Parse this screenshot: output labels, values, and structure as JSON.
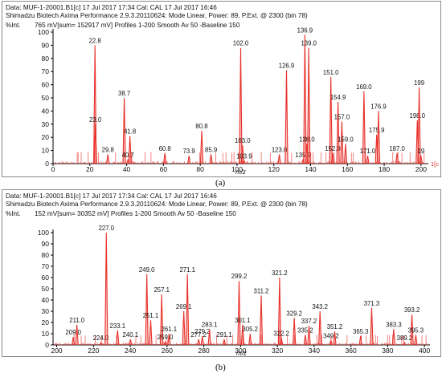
{
  "colors": {
    "trace": "#e8312a",
    "axis": "#000000",
    "label": "#111111",
    "frame": "#8a8a8a"
  },
  "figure": {
    "caption_a": "(a)",
    "caption_b": "(b)"
  },
  "chart_data": [
    {
      "type": "line",
      "panel": "a",
      "header_line1": "Data: MUF-1-20001.B1[c] 17 Jul 2017 17:34 Cal: CAL 17 Jul 2017 16:46",
      "header_line2": "Shimadzu Biotech Axima Performance 2.9.3.20110624: Mode Linear, Power: 89, P.Ext. @ 2300 (bin 78)",
      "header_line3": "765 mV[sum= 152917 mV]  Profiles 1-200 Smooth Av 50 -Baseline 150",
      "ylabel": "%Int.",
      "xlabel": "m/z",
      "end_marker": "1[c",
      "xlim": [
        0,
        204
      ],
      "ylim": [
        0,
        100
      ],
      "xticks": [
        0,
        20,
        40,
        60,
        80,
        100,
        120,
        140,
        160,
        180,
        200
      ],
      "yticks": [
        0,
        10,
        20,
        30,
        40,
        50,
        60,
        70,
        80,
        90,
        100
      ],
      "peaks": [
        {
          "x": 22.8,
          "y": 90,
          "label": "22.8"
        },
        {
          "x": 23.0,
          "y": 30,
          "label": "23.0"
        },
        {
          "x": 29.8,
          "y": 7,
          "label": "29.8"
        },
        {
          "x": 38.7,
          "y": 50,
          "label": "38.7"
        },
        {
          "x": 40.7,
          "y": 3,
          "label": "40.7"
        },
        {
          "x": 41.8,
          "y": 21,
          "label": "41.8"
        },
        {
          "x": 60.8,
          "y": 8,
          "label": "60.8"
        },
        {
          "x": 73.9,
          "y": 6,
          "label": "73.9"
        },
        {
          "x": 80.8,
          "y": 25,
          "label": "80.8"
        },
        {
          "x": 85.9,
          "y": 7,
          "label": "85.9"
        },
        {
          "x": 102.0,
          "y": 88,
          "label": "102.0"
        },
        {
          "x": 103.0,
          "y": 14,
          "label": "103.0"
        },
        {
          "x": 103.9,
          "y": 2,
          "label": "103.9"
        },
        {
          "x": 123.0,
          "y": 7,
          "label": "123.0"
        },
        {
          "x": 126.9,
          "y": 71,
          "label": "126.9"
        },
        {
          "x": 135.9,
          "y": 3,
          "label": "135.9"
        },
        {
          "x": 136.9,
          "y": 98,
          "label": "136.9"
        },
        {
          "x": 138.0,
          "y": 15,
          "label": "138.0"
        },
        {
          "x": 139.0,
          "y": 88,
          "label": "139.0"
        },
        {
          "x": 151.0,
          "y": 66,
          "label": "151.0"
        },
        {
          "x": 152.0,
          "y": 8,
          "label": "152.0"
        },
        {
          "x": 154.9,
          "y": 47,
          "label": "154.9"
        },
        {
          "x": 157.0,
          "y": 32,
          "label": "157.0"
        },
        {
          "x": 159.0,
          "y": 15,
          "label": "159.0"
        },
        {
          "x": 169.0,
          "y": 55,
          "label": "169.0"
        },
        {
          "x": 171.0,
          "y": 6,
          "label": "171.0"
        },
        {
          "x": 175.9,
          "y": 22,
          "label": "175.9"
        },
        {
          "x": 176.9,
          "y": 40,
          "label": "176.9"
        },
        {
          "x": 187.0,
          "y": 8,
          "label": "187.0"
        },
        {
          "x": 198.0,
          "y": 33,
          "label": "198.0"
        },
        {
          "x": 199.0,
          "y": 58,
          "label": "199"
        },
        {
          "x": 200.0,
          "y": 6,
          "label": "19"
        }
      ]
    },
    {
      "type": "line",
      "panel": "b",
      "header_line1": "Data: MUF-1-20001.B1[c] 17 Jul 2017 17:34 Cal: CAL 17 Jul 2017 16:46",
      "header_line2": "Shimadzu Biotech Axima Performance 2.9.3.20110624: Mode Linear, Power: 89, P.Ext. @ 2300 (bin 78)",
      "header_line3": "152 mV[sum= 30352 mV]  Profiles 1-200 Smooth Av 50 -Baseline 150",
      "ylabel": "%Int.",
      "xlabel": "m/z",
      "xlim": [
        198,
        403
      ],
      "ylim": [
        0,
        100
      ],
      "xticks": [
        200,
        220,
        240,
        260,
        280,
        300,
        320,
        340,
        360,
        380,
        400
      ],
      "yticks": [
        0,
        10,
        20,
        30,
        40,
        50,
        60,
        70,
        80,
        90,
        100
      ],
      "peaks": [
        {
          "x": 209.0,
          "y": 7,
          "label": "209.0"
        },
        {
          "x": 211.0,
          "y": 18,
          "label": "211.0"
        },
        {
          "x": 224.0,
          "y": 2,
          "label": "224.0"
        },
        {
          "x": 227.0,
          "y": 100,
          "label": "227.0"
        },
        {
          "x": 233.1,
          "y": 13,
          "label": "233.1"
        },
        {
          "x": 240.1,
          "y": 5,
          "label": "240.1"
        },
        {
          "x": 249.0,
          "y": 63,
          "label": "249.0"
        },
        {
          "x": 251.1,
          "y": 22,
          "label": "251.1"
        },
        {
          "x": 257.1,
          "y": 45,
          "label": "257.1"
        },
        {
          "x": 259.0,
          "y": 3,
          "label": "259.0"
        },
        {
          "x": 261.1,
          "y": 10,
          "label": "261.1"
        },
        {
          "x": 269.1,
          "y": 30,
          "label": "269.1"
        },
        {
          "x": 271.1,
          "y": 63,
          "label": "271.1"
        },
        {
          "x": 277.2,
          "y": 5,
          "label": "277.2"
        },
        {
          "x": 279.2,
          "y": 8,
          "label": "279.2"
        },
        {
          "x": 283.1,
          "y": 14,
          "label": "283.1"
        },
        {
          "x": 291.1,
          "y": 5,
          "label": "291.1"
        },
        {
          "x": 299.2,
          "y": 57,
          "label": "299.2"
        },
        {
          "x": 301.1,
          "y": 18,
          "label": "301.1"
        },
        {
          "x": 305.2,
          "y": 10,
          "label": "305.2"
        },
        {
          "x": 311.2,
          "y": 44,
          "label": "311.2"
        },
        {
          "x": 321.2,
          "y": 60,
          "label": "321.2"
        },
        {
          "x": 322.2,
          "y": 6,
          "label": "322.2"
        },
        {
          "x": 329.2,
          "y": 24,
          "label": "329.2"
        },
        {
          "x": 335.2,
          "y": 9,
          "label": "335.2"
        },
        {
          "x": 337.2,
          "y": 17,
          "label": "337.2"
        },
        {
          "x": 343.2,
          "y": 30,
          "label": "343.2"
        },
        {
          "x": 349.2,
          "y": 4,
          "label": "349.2"
        },
        {
          "x": 351.2,
          "y": 12,
          "label": "351.2"
        },
        {
          "x": 365.3,
          "y": 8,
          "label": "365.3"
        },
        {
          "x": 371.3,
          "y": 33,
          "label": "371.3"
        },
        {
          "x": 383.3,
          "y": 14,
          "label": "383.3"
        },
        {
          "x": 389.2,
          "y": 2,
          "label": "389.2"
        },
        {
          "x": 393.2,
          "y": 27,
          "label": "393.2"
        },
        {
          "x": 395.3,
          "y": 9,
          "label": "395.3"
        }
      ]
    }
  ]
}
